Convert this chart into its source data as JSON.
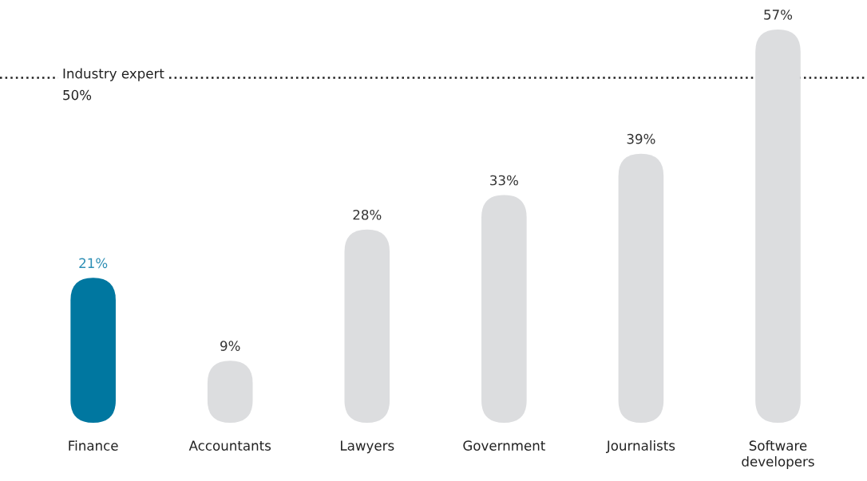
{
  "chart_data": {
    "type": "bar",
    "categories": [
      "Finance",
      "Accountants",
      "Lawyers",
      "Government",
      "Journalists",
      "Software\ndevelopers"
    ],
    "values": [
      21,
      9,
      28,
      33,
      39,
      57
    ],
    "colors": [
      "#0077a0",
      "#dcdddf",
      "#dcdddf",
      "#dcdddf",
      "#dcdddf",
      "#dcdddf"
    ],
    "value_labels": [
      "21%",
      "9%",
      "28%",
      "33%",
      "39%",
      "57%"
    ],
    "ref_lines": [
      {
        "axis": "y",
        "value": 50,
        "label": "Industry expert\n50%",
        "color": "#222222",
        "line_style": "dotted"
      }
    ]
  }
}
